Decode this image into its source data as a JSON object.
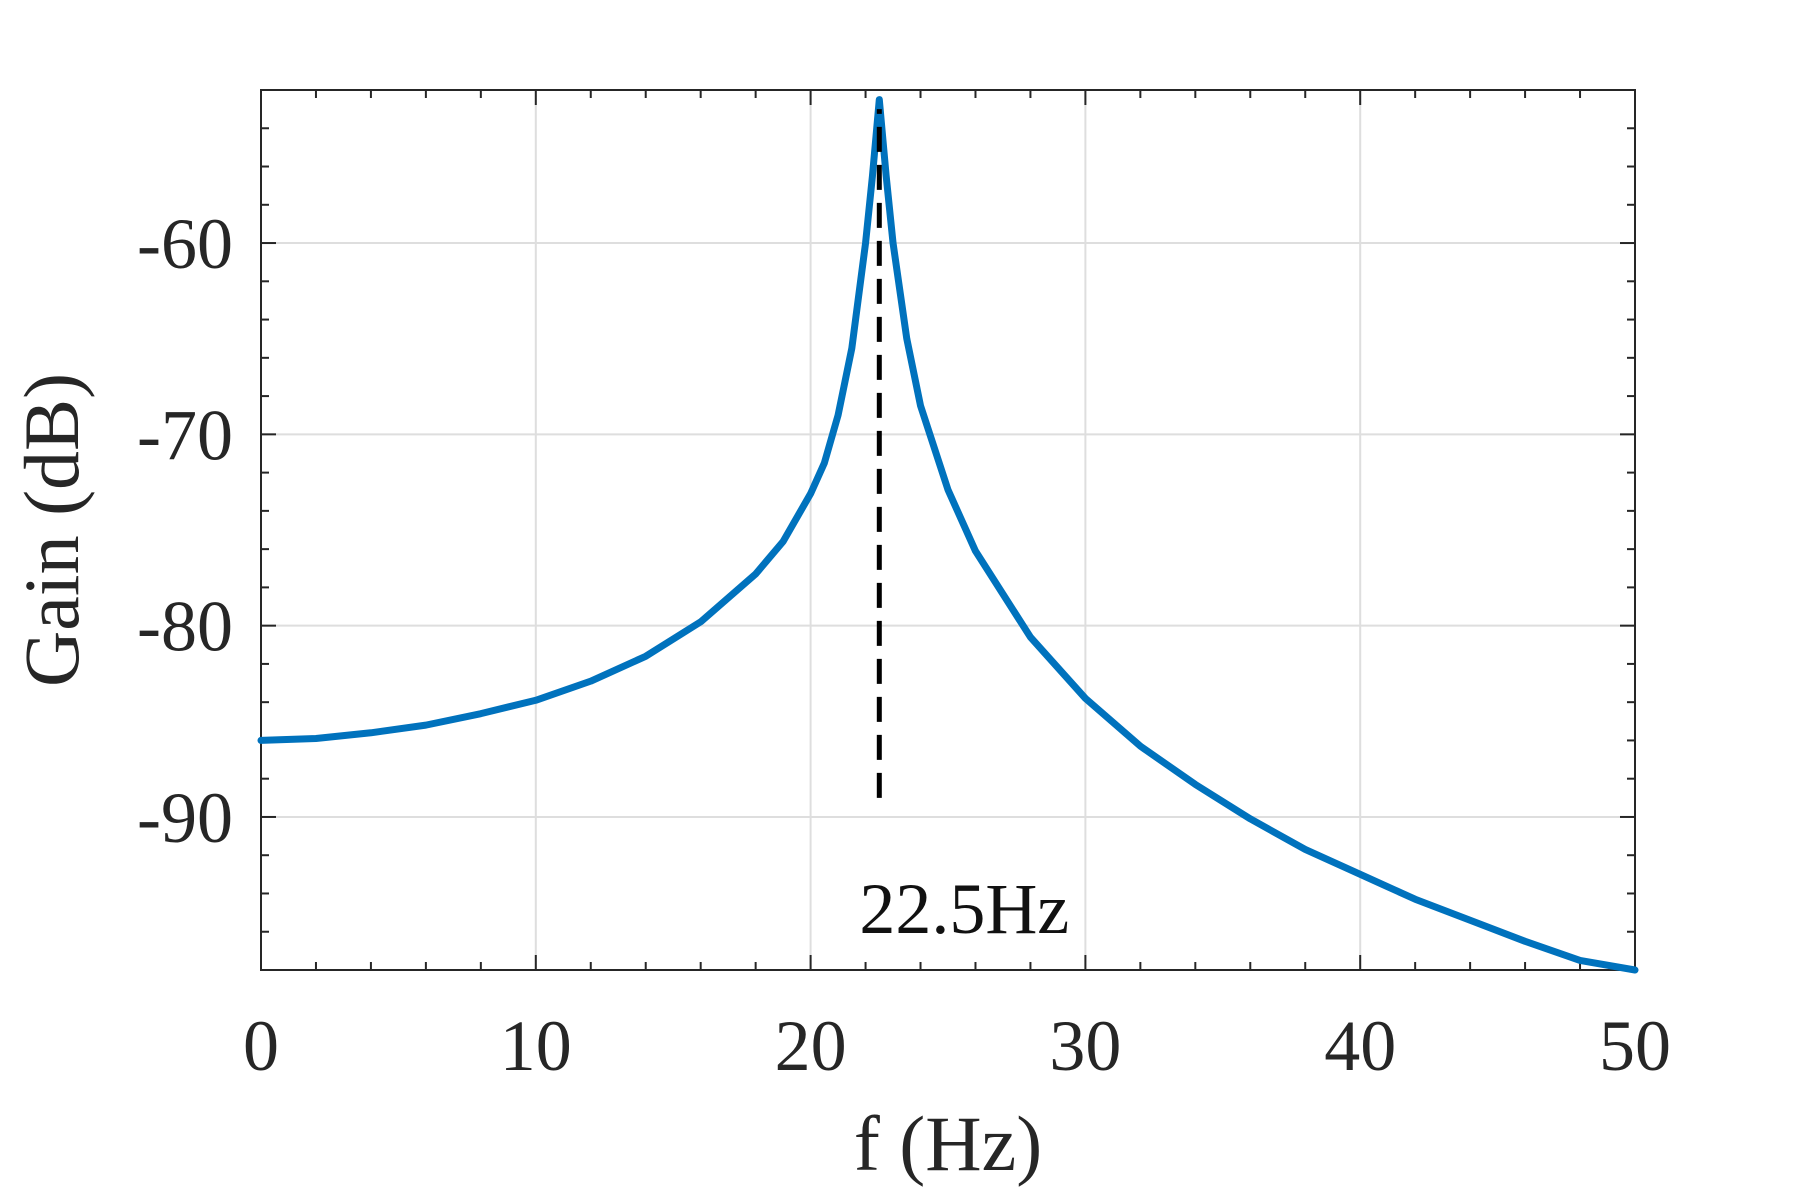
{
  "chart_data": {
    "type": "line",
    "title": "",
    "xlabel": "f (Hz)",
    "ylabel": "Gain (dB)",
    "xlim": [
      0,
      50
    ],
    "ylim": [
      -98,
      -52
    ],
    "xticks": [
      0,
      10,
      20,
      30,
      40,
      50
    ],
    "xtick_labels": [
      "0",
      "10",
      "20",
      "30",
      "40",
      "50"
    ],
    "yticks": [
      -90,
      -80,
      -70,
      -60
    ],
    "ytick_labels": [
      "-90",
      "-80",
      "-70",
      "-60"
    ],
    "grid": true,
    "legend": "none",
    "series": [
      {
        "color": "#0072BD",
        "points": [
          [
            0,
            -86.0
          ],
          [
            2,
            -85.9
          ],
          [
            4,
            -85.6
          ],
          [
            6,
            -85.2
          ],
          [
            8,
            -84.6
          ],
          [
            10,
            -83.9
          ],
          [
            12,
            -82.9
          ],
          [
            14,
            -81.6
          ],
          [
            16,
            -79.8
          ],
          [
            18,
            -77.3
          ],
          [
            19,
            -75.6
          ],
          [
            20,
            -73.1
          ],
          [
            20.5,
            -71.5
          ],
          [
            21,
            -69.0
          ],
          [
            21.5,
            -65.5
          ],
          [
            22,
            -60.0
          ],
          [
            22.25,
            -56.5
          ],
          [
            22.5,
            -52.5
          ],
          [
            22.75,
            -56.5
          ],
          [
            23,
            -60.0
          ],
          [
            23.5,
            -65.0
          ],
          [
            24,
            -68.5
          ],
          [
            25,
            -72.9
          ],
          [
            26,
            -76.1
          ],
          [
            28,
            -80.6
          ],
          [
            30,
            -83.8
          ],
          [
            32,
            -86.3
          ],
          [
            34,
            -88.3
          ],
          [
            36,
            -90.1
          ],
          [
            38,
            -91.7
          ],
          [
            40,
            -93.0
          ],
          [
            42,
            -94.3
          ],
          [
            44,
            -95.4
          ],
          [
            46,
            -96.5
          ],
          [
            48,
            -97.5
          ],
          [
            50,
            -98.0
          ]
        ]
      }
    ],
    "annotations": [
      {
        "text": "22.5Hz",
        "x": 22.5,
        "line_from_y": -89,
        "line_to_y": -53,
        "line_style": "dashed",
        "line_color": "#000000"
      }
    ]
  }
}
